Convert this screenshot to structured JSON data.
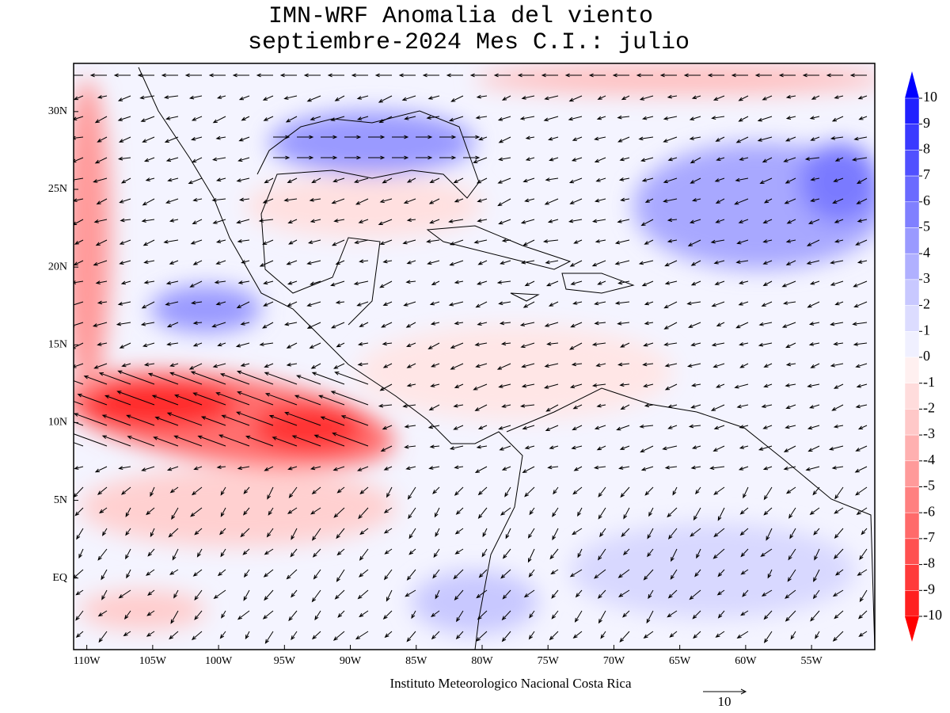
{
  "chart_data": {
    "type": "map",
    "title": "IMN-WRF Anomalia del viento",
    "subtitle": "septiembre-2024 Mes C.I.: julio",
    "xlim": [
      -111,
      -50.2
    ],
    "ylim": [
      -4.6,
      33.1
    ],
    "xticks": [
      {
        "value": -110,
        "label": "110W"
      },
      {
        "value": -105,
        "label": "105W"
      },
      {
        "value": -100,
        "label": "100W"
      },
      {
        "value": -95,
        "label": "95W"
      },
      {
        "value": -90,
        "label": "90W"
      },
      {
        "value": -85,
        "label": "85W"
      },
      {
        "value": -80,
        "label": "80W"
      },
      {
        "value": -75,
        "label": "75W"
      },
      {
        "value": -70,
        "label": "70W"
      },
      {
        "value": -65,
        "label": "65W"
      },
      {
        "value": -60,
        "label": "60W"
      },
      {
        "value": -55,
        "label": "55W"
      }
    ],
    "yticks": [
      {
        "value": 0,
        "label": "EQ"
      },
      {
        "value": 5,
        "label": "5N"
      },
      {
        "value": 10,
        "label": "10N"
      },
      {
        "value": 15,
        "label": "15N"
      },
      {
        "value": 20,
        "label": "20N"
      },
      {
        "value": 25,
        "label": "25N"
      },
      {
        "value": 30,
        "label": "30N"
      }
    ],
    "colorbar": {
      "levels": [
        10,
        9,
        8,
        7,
        6,
        5,
        4,
        3,
        2,
        1,
        0,
        -1,
        -2,
        -3,
        -4,
        -5,
        -6,
        -7,
        -8,
        -9,
        -10
      ],
      "colors": [
        "#0000ff",
        "#2020ff",
        "#3a3aff",
        "#5050ff",
        "#6a6aff",
        "#8080ff",
        "#9a9aff",
        "#b0b0ff",
        "#c8c8ff",
        "#dcdcff",
        "#f0f0ff",
        "#fff0f0",
        "#ffdcdc",
        "#ffc8c8",
        "#ffb0b0",
        "#ff9a9a",
        "#ff8080",
        "#ff6a6a",
        "#ff5050",
        "#ff3a3a",
        "#ff2020",
        "#ff0000"
      ]
    },
    "footer": "Instituto Meteorologico Nacional Costa Rica",
    "reference_vector": 10
  }
}
